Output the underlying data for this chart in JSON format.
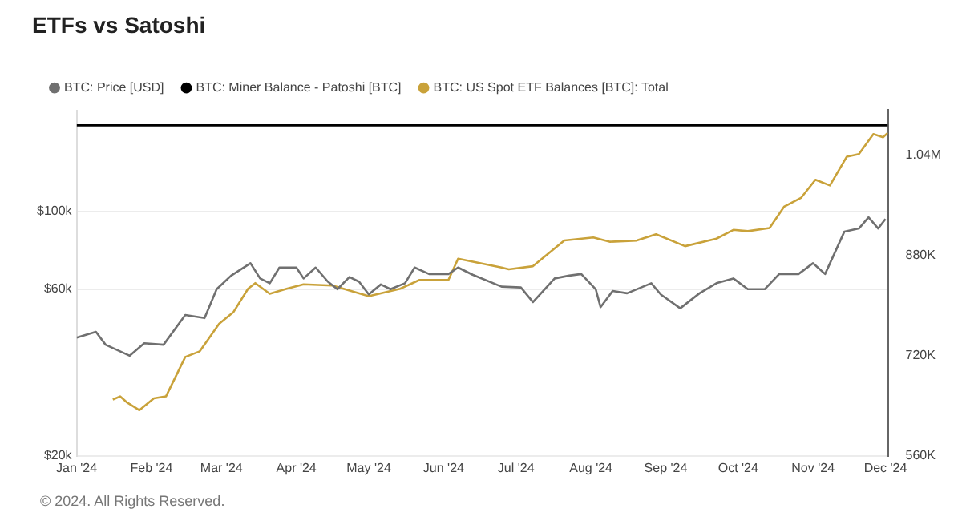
{
  "chart_data": {
    "type": "line",
    "title": "ETFs vs Satoshi",
    "legend": "top left",
    "grid": "y",
    "log": "y",
    "marker": "none",
    "line_style": "solid",
    "annotations": [
      "© 2024. All Rights Reserved."
    ],
    "xlim": [
      "2024-01-01",
      "2024-12-02"
    ],
    "xticks": [
      {
        "value": "2024-01-01",
        "label": "Jan '24"
      },
      {
        "value": "2024-02-01",
        "label": "Feb '24"
      },
      {
        "value": "2024-03-01",
        "label": "Mar '24"
      },
      {
        "value": "2024-04-01",
        "label": "Apr '24"
      },
      {
        "value": "2024-05-01",
        "label": "May '24"
      },
      {
        "value": "2024-06-01",
        "label": "Jun '24"
      },
      {
        "value": "2024-07-01",
        "label": "Jul '24"
      },
      {
        "value": "2024-08-01",
        "label": "Aug '24"
      },
      {
        "value": "2024-09-01",
        "label": "Sep '24"
      },
      {
        "value": "2024-10-01",
        "label": "Oct '24"
      },
      {
        "value": "2024-11-01",
        "label": "Nov '24"
      },
      {
        "value": "2024-12-01",
        "label": "Dec '24"
      }
    ],
    "ylim": [
      20000,
      195000
    ],
    "yticks": [
      {
        "value": 20000,
        "label": "$20k"
      },
      {
        "value": 60000,
        "label": "$60k"
      },
      {
        "value": 100000,
        "label": "$100k"
      }
    ],
    "y2lim": [
      560000,
      1112000
    ],
    "y2ticks": [
      {
        "value": 560000,
        "label": "560K"
      },
      {
        "value": 720000,
        "label": "720K"
      },
      {
        "value": 880000,
        "label": "880K"
      },
      {
        "value": 1040000,
        "label": "1.04M"
      }
    ],
    "series": [
      {
        "name": "BTC: Price [USD]",
        "color": "#707070",
        "x": [
          "2024-01-01",
          "2024-01-09",
          "2024-01-13",
          "2024-01-23",
          "2024-01-29",
          "2024-02-06",
          "2024-02-15",
          "2024-02-23",
          "2024-02-28",
          "2024-03-05",
          "2024-03-13",
          "2024-03-17",
          "2024-03-21",
          "2024-03-25",
          "2024-04-01",
          "2024-04-04",
          "2024-04-09",
          "2024-04-14",
          "2024-04-18",
          "2024-04-23",
          "2024-04-27",
          "2024-05-01",
          "2024-05-06",
          "2024-05-10",
          "2024-05-16",
          "2024-05-20",
          "2024-05-26",
          "2024-06-03",
          "2024-06-07",
          "2024-06-13",
          "2024-06-25",
          "2024-07-03",
          "2024-07-08",
          "2024-07-17",
          "2024-07-23",
          "2024-07-28",
          "2024-08-03",
          "2024-08-05",
          "2024-08-10",
          "2024-08-16",
          "2024-08-26",
          "2024-08-30",
          "2024-09-07",
          "2024-09-15",
          "2024-09-22",
          "2024-09-29",
          "2024-10-05",
          "2024-10-12",
          "2024-10-18",
          "2024-10-26",
          "2024-11-01",
          "2024-11-06",
          "2024-11-14",
          "2024-11-20",
          "2024-11-24",
          "2024-11-28",
          "2024-12-01"
        ],
        "values": [
          43600,
          45300,
          41600,
          38700,
          42000,
          41600,
          50600,
          49600,
          60000,
          65600,
          71200,
          64400,
          62400,
          69200,
          69200,
          64400,
          69200,
          63100,
          60000,
          65000,
          63000,
          58000,
          61900,
          60000,
          62400,
          69200,
          66300,
          66300,
          69200,
          66000,
          61000,
          60700,
          55100,
          64400,
          65600,
          66300,
          60000,
          53300,
          59300,
          58400,
          62400,
          57900,
          52900,
          58400,
          62400,
          64400,
          60000,
          60000,
          66300,
          66300,
          71200,
          66300,
          87700,
          89500,
          96300,
          89500,
          95300
        ]
      },
      {
        "name": "BTC: Miner Balance - Patoshi [BTC]",
        "color": "#000000",
        "axis": "y2",
        "x": [
          "2024-01-01",
          "2024-12-02"
        ],
        "values": [
          1088000,
          1088000
        ]
      },
      {
        "name": "BTC: US Spot ETF Balances [BTC]: Total",
        "color": "#c9a23a",
        "axis": "y2",
        "x": [
          "2024-01-16",
          "2024-01-19",
          "2024-01-22",
          "2024-01-27",
          "2024-02-02",
          "2024-02-07",
          "2024-02-15",
          "2024-02-21",
          "2024-02-29",
          "2024-03-06",
          "2024-03-12",
          "2024-03-15",
          "2024-03-21",
          "2024-03-28",
          "2024-04-04",
          "2024-04-16",
          "2024-05-01",
          "2024-05-14",
          "2024-05-22",
          "2024-06-03",
          "2024-06-07",
          "2024-06-25",
          "2024-06-28",
          "2024-07-08",
          "2024-07-21",
          "2024-08-02",
          "2024-08-09",
          "2024-08-20",
          "2024-08-28",
          "2024-09-09",
          "2024-09-22",
          "2024-09-29",
          "2024-10-05",
          "2024-10-14",
          "2024-10-20",
          "2024-10-27",
          "2024-11-02",
          "2024-11-08",
          "2024-11-15",
          "2024-11-20",
          "2024-11-26",
          "2024-11-30",
          "2024-12-02"
        ],
        "values": [
          650000,
          655000,
          645000,
          633000,
          652000,
          655000,
          718000,
          727000,
          771000,
          790000,
          827000,
          836000,
          819000,
          827000,
          834000,
          832000,
          815000,
          827000,
          841000,
          841000,
          875000,
          861000,
          858000,
          863000,
          904000,
          909000,
          902000,
          904000,
          914000,
          895000,
          907000,
          921000,
          919000,
          924000,
          958000,
          972000,
          1001000,
          992000,
          1038000,
          1042000,
          1074000,
          1069000,
          1076000
        ]
      }
    ]
  }
}
